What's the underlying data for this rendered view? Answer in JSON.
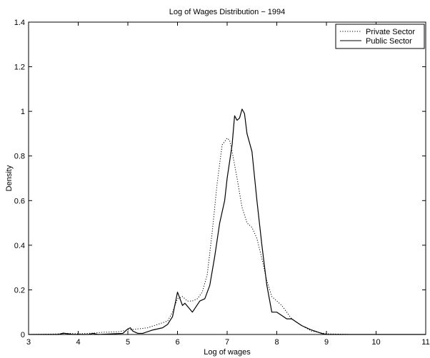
{
  "chart_data": {
    "type": "line",
    "title": "Log of Wages Distribution − 1994",
    "xlabel": "Log of wages",
    "ylabel": "Density",
    "xlim": [
      3,
      11
    ],
    "ylim": [
      0,
      1.4
    ],
    "xticks": [
      3,
      4,
      5,
      6,
      7,
      8,
      9,
      10,
      11
    ],
    "xtick_labels": [
      "3",
      "4",
      "5",
      "6",
      "7",
      "8",
      "9",
      "10",
      "11"
    ],
    "yticks": [
      0,
      0.2,
      0.4,
      0.6,
      0.8,
      1,
      1.2,
      1.4
    ],
    "ytick_labels": [
      "0",
      "0.2",
      "0.4",
      "0.6",
      "0.8",
      "1",
      "1.2",
      "1.4"
    ],
    "grid": false,
    "legend_position": "top-right",
    "series": [
      {
        "name": "Private Sector",
        "style": "dotted",
        "color": "#000000",
        "points": [
          [
            3.0,
            0.0
          ],
          [
            3.5,
            0.002
          ],
          [
            3.8,
            0.005
          ],
          [
            4.0,
            0.003
          ],
          [
            4.3,
            0.006
          ],
          [
            4.5,
            0.01
          ],
          [
            4.8,
            0.012
          ],
          [
            5.0,
            0.02
          ],
          [
            5.2,
            0.025
          ],
          [
            5.4,
            0.03
          ],
          [
            5.6,
            0.045
          ],
          [
            5.8,
            0.06
          ],
          [
            5.9,
            0.1
          ],
          [
            6.0,
            0.16
          ],
          [
            6.1,
            0.17
          ],
          [
            6.2,
            0.15
          ],
          [
            6.3,
            0.15
          ],
          [
            6.4,
            0.16
          ],
          [
            6.5,
            0.19
          ],
          [
            6.6,
            0.27
          ],
          [
            6.7,
            0.46
          ],
          [
            6.8,
            0.68
          ],
          [
            6.9,
            0.85
          ],
          [
            7.0,
            0.88
          ],
          [
            7.05,
            0.87
          ],
          [
            7.1,
            0.82
          ],
          [
            7.2,
            0.7
          ],
          [
            7.3,
            0.57
          ],
          [
            7.4,
            0.5
          ],
          [
            7.5,
            0.48
          ],
          [
            7.6,
            0.43
          ],
          [
            7.7,
            0.34
          ],
          [
            7.8,
            0.24
          ],
          [
            7.9,
            0.17
          ],
          [
            8.0,
            0.15
          ],
          [
            8.1,
            0.13
          ],
          [
            8.2,
            0.1
          ],
          [
            8.3,
            0.07
          ],
          [
            8.5,
            0.04
          ],
          [
            8.7,
            0.015
          ],
          [
            9.0,
            0.003
          ],
          [
            9.5,
            0.0
          ],
          [
            10.0,
            0.0
          ],
          [
            11.0,
            0.0
          ]
        ]
      },
      {
        "name": "Public Sector",
        "style": "solid",
        "color": "#000000",
        "points": [
          [
            3.0,
            0.0
          ],
          [
            3.6,
            0.0
          ],
          [
            3.7,
            0.006
          ],
          [
            3.8,
            0.003
          ],
          [
            3.9,
            0.0
          ],
          [
            4.2,
            0.0
          ],
          [
            4.3,
            0.005
          ],
          [
            4.4,
            0.0
          ],
          [
            4.9,
            0.005
          ],
          [
            5.0,
            0.025
          ],
          [
            5.05,
            0.03
          ],
          [
            5.1,
            0.015
          ],
          [
            5.2,
            0.005
          ],
          [
            5.3,
            0.005
          ],
          [
            5.5,
            0.02
          ],
          [
            5.7,
            0.03
          ],
          [
            5.8,
            0.045
          ],
          [
            5.9,
            0.08
          ],
          [
            6.0,
            0.19
          ],
          [
            6.1,
            0.13
          ],
          [
            6.15,
            0.14
          ],
          [
            6.3,
            0.1
          ],
          [
            6.45,
            0.15
          ],
          [
            6.55,
            0.16
          ],
          [
            6.65,
            0.22
          ],
          [
            6.75,
            0.35
          ],
          [
            6.85,
            0.5
          ],
          [
            6.95,
            0.6
          ],
          [
            7.0,
            0.7
          ],
          [
            7.1,
            0.85
          ],
          [
            7.15,
            0.98
          ],
          [
            7.2,
            0.96
          ],
          [
            7.25,
            0.97
          ],
          [
            7.3,
            1.01
          ],
          [
            7.35,
            0.99
          ],
          [
            7.4,
            0.9
          ],
          [
            7.5,
            0.82
          ],
          [
            7.6,
            0.6
          ],
          [
            7.7,
            0.4
          ],
          [
            7.8,
            0.22
          ],
          [
            7.9,
            0.1
          ],
          [
            8.0,
            0.1
          ],
          [
            8.1,
            0.085
          ],
          [
            8.2,
            0.07
          ],
          [
            8.3,
            0.07
          ],
          [
            8.5,
            0.04
          ],
          [
            8.7,
            0.02
          ],
          [
            8.9,
            0.005
          ],
          [
            9.0,
            0.0
          ],
          [
            11.0,
            0.0
          ]
        ]
      }
    ]
  }
}
